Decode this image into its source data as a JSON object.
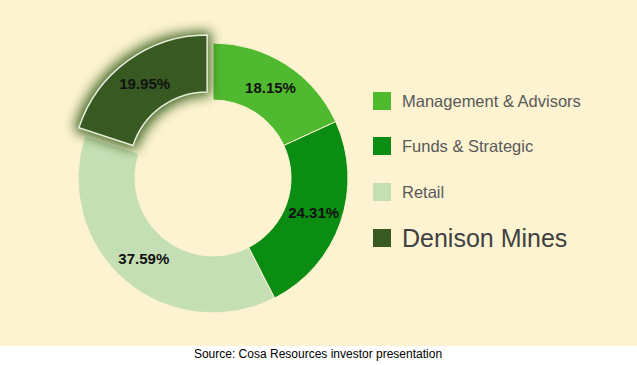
{
  "chart_data": {
    "type": "pie",
    "categories": [
      "Management & Advisors",
      "Funds & Strategic",
      "Retail",
      "Denison Mines"
    ],
    "values": [
      18.15,
      24.31,
      37.59,
      19.95
    ],
    "value_labels": [
      "18.15%",
      "24.31%",
      "37.59%",
      "19.95%"
    ],
    "colors": [
      "#4fb92f",
      "#0b8c13",
      "#c5dfb5",
      "#385a22"
    ],
    "data_labels": true,
    "legend": "right",
    "annotations": [
      "Source: Cosa Resources investor presentation"
    ]
  }
}
